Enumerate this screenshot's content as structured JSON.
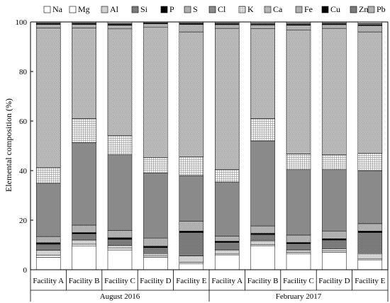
{
  "chart_data": {
    "type": "bar",
    "stacked": true,
    "ylabel": "Elemental composition (%)",
    "xlabel": "",
    "ylim": [
      0,
      100
    ],
    "yticks": [
      0,
      20,
      40,
      60,
      80,
      100
    ],
    "legend_position": "top",
    "categories": [
      "Facility A",
      "Facility B",
      "Facility C",
      "Facility D",
      "Facility E",
      "Facility A",
      "Facility B",
      "Facility C",
      "Facility D",
      "Facility E"
    ],
    "groups": [
      {
        "label": "August 2016",
        "start": 0,
        "end": 4
      },
      {
        "label": "February 2017",
        "start": 5,
        "end": 9
      }
    ],
    "series": [
      {
        "name": "Na",
        "values": [
          5.0,
          9.5,
          8.0,
          5.0,
          2.5,
          6.0,
          9.7,
          6.5,
          7.0,
          4.0
        ]
      },
      {
        "name": "Mg",
        "values": [
          0.8,
          0.8,
          0.8,
          0.5,
          0.5,
          0.5,
          0.5,
          0.5,
          0.5,
          0.5
        ]
      },
      {
        "name": "Al",
        "values": [
          2.0,
          1.7,
          1.0,
          1.0,
          2.5,
          1.5,
          1.5,
          1.0,
          1.0,
          2.0
        ]
      },
      {
        "name": "Si",
        "values": [
          2.5,
          2.5,
          2.5,
          2.5,
          9.5,
          3.0,
          2.5,
          2.5,
          3.5,
          8.5
        ]
      },
      {
        "name": "P",
        "values": [
          0.6,
          0.5,
          0.6,
          0.5,
          0.6,
          0.5,
          0.5,
          0.5,
          0.5,
          0.6
        ]
      },
      {
        "name": "S",
        "values": [
          2.5,
          3.0,
          3.0,
          3.3,
          4.0,
          2.0,
          3.0,
          3.0,
          3.0,
          3.0
        ]
      },
      {
        "name": "Cl",
        "values": [
          21.5,
          33.3,
          30.5,
          26.2,
          18.4,
          21.9,
          34.3,
          26.4,
          24.9,
          21.4
        ]
      },
      {
        "name": "K",
        "values": [
          6.3,
          9.7,
          7.8,
          6.3,
          7.5,
          5.0,
          9.0,
          6.3,
          6.0,
          7.0
        ]
      },
      {
        "name": "Ca",
        "values": [
          56.3,
          36.5,
          43.0,
          52.5,
          50.5,
          57.0,
          36.3,
          50.0,
          51.0,
          49.0
        ]
      },
      {
        "name": "Fe",
        "values": [
          1.5,
          1.5,
          1.5,
          1.5,
          3.0,
          1.5,
          1.5,
          2.0,
          1.5,
          2.5
        ]
      },
      {
        "name": "Cu",
        "values": [
          0.3,
          0.3,
          0.3,
          0.3,
          0.3,
          0.3,
          0.3,
          0.3,
          0.3,
          0.3
        ]
      },
      {
        "name": "Zn",
        "values": [
          0.4,
          0.4,
          0.4,
          0.4,
          0.4,
          0.5,
          0.4,
          0.5,
          0.5,
          0.6
        ]
      },
      {
        "name": "Pb",
        "values": [
          0.3,
          0.3,
          0.6,
          0.0,
          0.3,
          0.3,
          0.5,
          0.5,
          0.3,
          0.6
        ]
      }
    ],
    "colors": {
      "Na": "#ffffff",
      "Mg": "#ffffff",
      "Al": "#e6e6e6",
      "Si": "#707070",
      "P": "#000000",
      "S": "#c8c8c8",
      "Cl": "#8a8a8a",
      "K": "#f2f2f2",
      "Ca": "#d8d8d8",
      "Fe": "#e0e0e0",
      "Cu": "#000000",
      "Zn": "#7a7a7a",
      "Pb": "#bcbcbc"
    },
    "patterns": {
      "Na": "none",
      "Mg": "none",
      "Al": "vlines",
      "Si": "hlines",
      "P": "none",
      "S": "dots",
      "Cl": "none",
      "K": "grid",
      "Ca": "grid",
      "Fe": "dots",
      "Cu": "none",
      "Zn": "none",
      "Pb": "dots"
    },
    "grid": false
  }
}
